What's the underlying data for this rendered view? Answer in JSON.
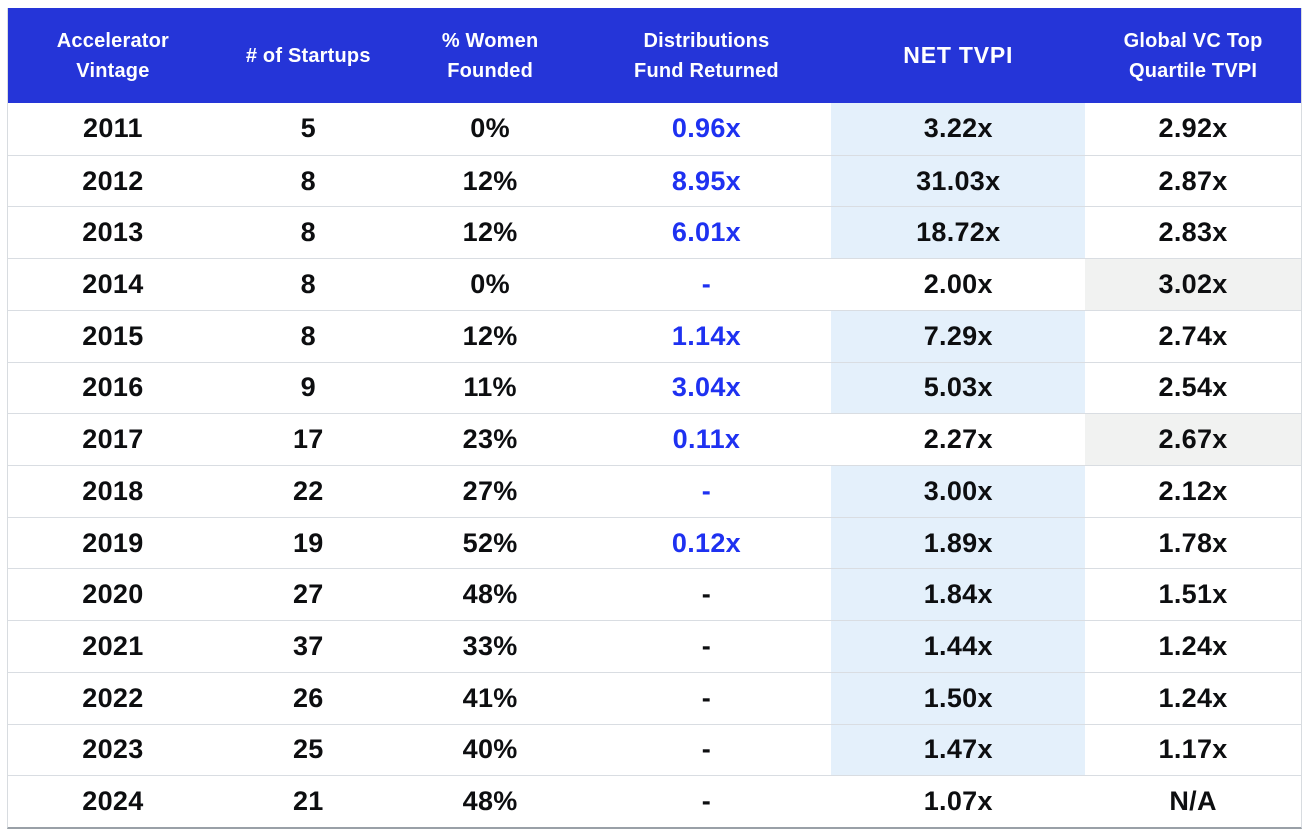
{
  "colors": {
    "header_bg": "#2535d8",
    "accent_blue": "#1e31f1",
    "highlight_blue": "#e4f0fb",
    "highlight_gray": "#f1f2f1",
    "separator": "#d9dde2",
    "side_edge": "#d8dce0",
    "bottom_edge": "#99a0a7",
    "header_text": "#ffffff",
    "data_text": "#0d0e10"
  },
  "chart_data": {
    "type": "table",
    "columns": [
      "Accelerator\nVintage",
      "# of Startups",
      "% Women\nFounded",
      "Distributions\nFund Returned",
      "NET TVPI",
      "Global VC Top\nQuartile TVPI"
    ],
    "rows": [
      {
        "vintage": "2011",
        "startups": "5",
        "women": "0%",
        "distributions": "0.96x",
        "distributions_blue": true,
        "net_tvpi": "3.22x",
        "net_tvpi_highlight": true,
        "global_tvpi": "2.92x",
        "global_tvpi_highlight": false
      },
      {
        "vintage": "2012",
        "startups": "8",
        "women": "12%",
        "distributions": "8.95x",
        "distributions_blue": true,
        "net_tvpi": "31.03x",
        "net_tvpi_highlight": true,
        "global_tvpi": "2.87x",
        "global_tvpi_highlight": false
      },
      {
        "vintage": "2013",
        "startups": "8",
        "women": "12%",
        "distributions": "6.01x",
        "distributions_blue": true,
        "net_tvpi": "18.72x",
        "net_tvpi_highlight": true,
        "global_tvpi": "2.83x",
        "global_tvpi_highlight": false
      },
      {
        "vintage": "2014",
        "startups": "8",
        "women": "0%",
        "distributions": "-",
        "distributions_blue": true,
        "net_tvpi": "2.00x",
        "net_tvpi_highlight": false,
        "global_tvpi": "3.02x",
        "global_tvpi_highlight": true
      },
      {
        "vintage": "2015",
        "startups": "8",
        "women": "12%",
        "distributions": "1.14x",
        "distributions_blue": true,
        "net_tvpi": "7.29x",
        "net_tvpi_highlight": true,
        "global_tvpi": "2.74x",
        "global_tvpi_highlight": false
      },
      {
        "vintage": "2016",
        "startups": "9",
        "women": "11%",
        "distributions": "3.04x",
        "distributions_blue": true,
        "net_tvpi": "5.03x",
        "net_tvpi_highlight": true,
        "global_tvpi": "2.54x",
        "global_tvpi_highlight": false
      },
      {
        "vintage": "2017",
        "startups": "17",
        "women": "23%",
        "distributions": "0.11x",
        "distributions_blue": true,
        "net_tvpi": "2.27x",
        "net_tvpi_highlight": false,
        "global_tvpi": "2.67x",
        "global_tvpi_highlight": true
      },
      {
        "vintage": "2018",
        "startups": "22",
        "women": "27%",
        "distributions": "-",
        "distributions_blue": true,
        "net_tvpi": "3.00x",
        "net_tvpi_highlight": true,
        "global_tvpi": "2.12x",
        "global_tvpi_highlight": false
      },
      {
        "vintage": "2019",
        "startups": "19",
        "women": "52%",
        "distributions": "0.12x",
        "distributions_blue": true,
        "net_tvpi": "1.89x",
        "net_tvpi_highlight": true,
        "global_tvpi": "1.78x",
        "global_tvpi_highlight": false
      },
      {
        "vintage": "2020",
        "startups": "27",
        "women": "48%",
        "distributions": "-",
        "distributions_blue": false,
        "net_tvpi": "1.84x",
        "net_tvpi_highlight": true,
        "global_tvpi": "1.51x",
        "global_tvpi_highlight": false
      },
      {
        "vintage": "2021",
        "startups": "37",
        "women": "33%",
        "distributions": "-",
        "distributions_blue": false,
        "net_tvpi": "1.44x",
        "net_tvpi_highlight": true,
        "global_tvpi": "1.24x",
        "global_tvpi_highlight": false
      },
      {
        "vintage": "2022",
        "startups": "26",
        "women": "41%",
        "distributions": "-",
        "distributions_blue": false,
        "net_tvpi": "1.50x",
        "net_tvpi_highlight": true,
        "global_tvpi": "1.24x",
        "global_tvpi_highlight": false
      },
      {
        "vintage": "2023",
        "startups": "25",
        "women": "40%",
        "distributions": "-",
        "distributions_blue": false,
        "net_tvpi": "1.47x",
        "net_tvpi_highlight": true,
        "global_tvpi": "1.17x",
        "global_tvpi_highlight": false
      },
      {
        "vintage": "2024",
        "startups": "21",
        "women": "48%",
        "distributions": "-",
        "distributions_blue": false,
        "net_tvpi": "1.07x",
        "net_tvpi_highlight": false,
        "global_tvpi": "N/A",
        "global_tvpi_highlight": false
      }
    ]
  }
}
